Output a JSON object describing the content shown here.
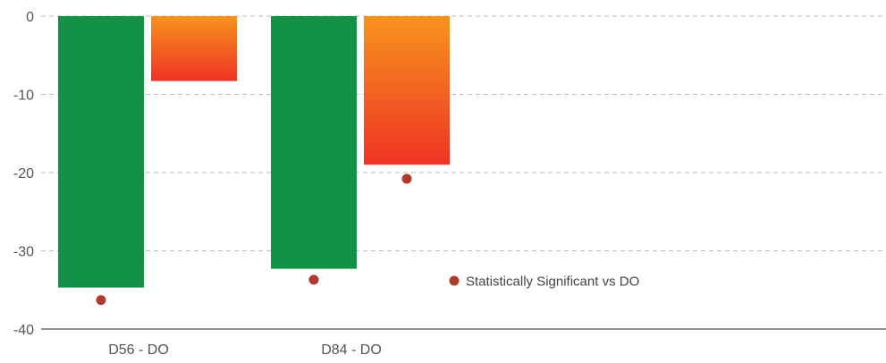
{
  "chart_data": {
    "type": "bar",
    "categories": [
      "D56 - DO",
      "D84 - DO"
    ],
    "series": [
      {
        "values": [
          -34.7,
          -32.3
        ],
        "color": "#139146"
      },
      {
        "values": [
          -8.3,
          -19.0
        ],
        "color_top": "#f7931e",
        "color_bottom": "#ef3324"
      }
    ],
    "significance_markers": {
      "color": "#b03a2e",
      "series_index": 0,
      "values": [
        -36.3,
        -33.7
      ],
      "extra": [
        {
          "category_index": 1,
          "series_index": 1,
          "value": -20.8
        }
      ]
    },
    "legend": {
      "label": "Statistically Significant vs DO",
      "placement": "right"
    },
    "yticks": [
      "0",
      "-10",
      "-20",
      "-30",
      "-40"
    ],
    "ytick_values": [
      0,
      -10,
      -20,
      -30,
      -40
    ],
    "ylim": [
      -40,
      0
    ],
    "grid": true,
    "title": "",
    "xlabel": "",
    "ylabel": ""
  }
}
